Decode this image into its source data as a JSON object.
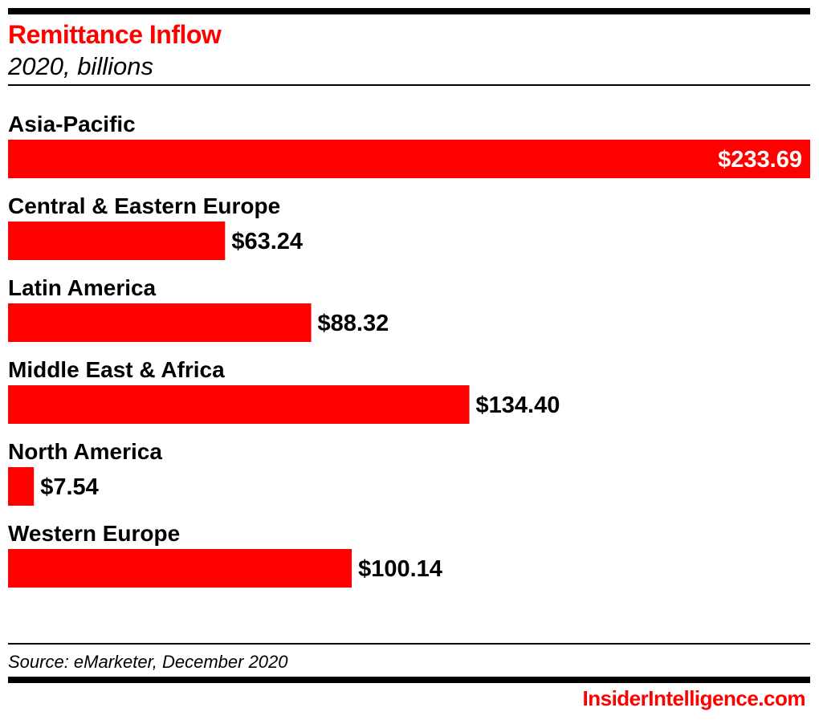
{
  "header": {
    "title": "Remittance Inflow",
    "subtitle": "2020, billions"
  },
  "colors": {
    "accent": "#ff0000",
    "text": "#000000",
    "inside_label": "#ffffff"
  },
  "chart_data": {
    "type": "bar",
    "orientation": "horizontal",
    "title": "Remittance Inflow",
    "subtitle": "2020, billions",
    "categories": [
      "Asia-Pacific",
      "Central & Eastern Europe",
      "Latin America",
      "Middle East & Africa",
      "North America",
      "Western Europe"
    ],
    "values": [
      233.69,
      63.24,
      88.32,
      134.4,
      7.54,
      100.14
    ],
    "value_labels": [
      "$233.69",
      "$63.24",
      "$88.32",
      "$134.40",
      "$7.54",
      "$100.14"
    ],
    "xlim": [
      0,
      233.69
    ],
    "grid": false,
    "legend": "none"
  },
  "footer": {
    "source": "Source: eMarketer, December 2020",
    "brand": "InsiderIntelligence.com"
  }
}
